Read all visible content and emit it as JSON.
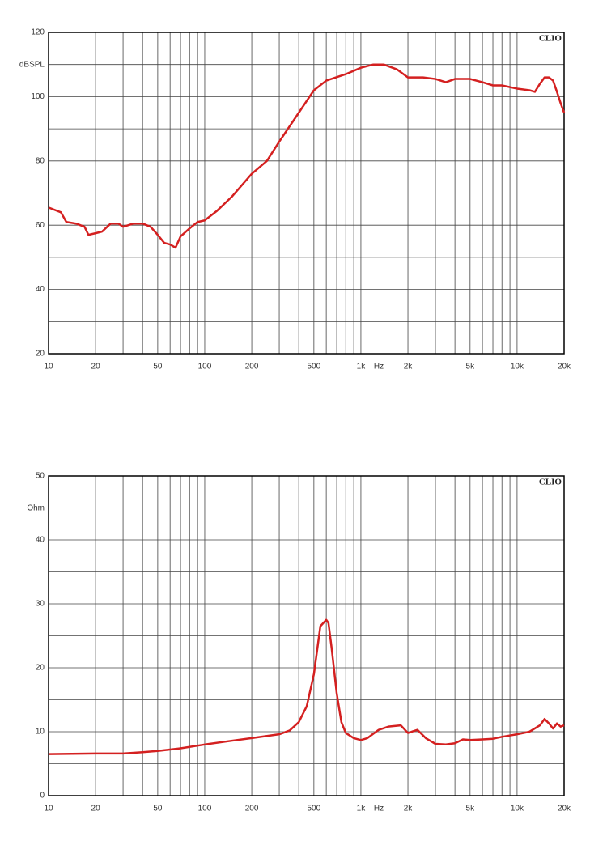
{
  "chart_data": [
    {
      "type": "line",
      "xscale": "log",
      "ylabel": "dBSPL",
      "xlabel": "Hz",
      "watermark": "CLIO",
      "color": "#d42020",
      "x": [
        10,
        12,
        13,
        15,
        17,
        18,
        20,
        22,
        25,
        28,
        30,
        35,
        40,
        45,
        50,
        55,
        60,
        65,
        70,
        80,
        90,
        100,
        120,
        150,
        200,
        250,
        300,
        400,
        500,
        600,
        800,
        1000,
        1200,
        1400,
        1700,
        2000,
        2500,
        3000,
        3500,
        4000,
        5000,
        6000,
        7000,
        8000,
        10000,
        12000,
        13000,
        14000,
        15000,
        16000,
        17000,
        18000,
        19000,
        20000
      ],
      "values": [
        65.5,
        64,
        61,
        60.5,
        59.5,
        57,
        57.5,
        58,
        60.5,
        60.5,
        59.5,
        60.5,
        60.5,
        59.5,
        57,
        54.5,
        54,
        53,
        56.5,
        59,
        61,
        61.5,
        64.5,
        69,
        76,
        80,
        86,
        95,
        102,
        105,
        107,
        109,
        110,
        110,
        108.5,
        106,
        106,
        105.5,
        104.5,
        105.5,
        105.5,
        104.5,
        103.5,
        103.5,
        102.5,
        102,
        101.5,
        104,
        106,
        106,
        105,
        101.5,
        98,
        95
      ],
      "xlim": [
        10,
        20000
      ],
      "ylim": [
        20,
        120
      ],
      "xticks": [
        10,
        20,
        50,
        100,
        200,
        500,
        {
          "value": 1000,
          "label": "1k"
        },
        {
          "value": 2000,
          "label": "2k"
        },
        {
          "value": 5000,
          "label": "5k"
        },
        {
          "value": 10000,
          "label": "10k"
        },
        {
          "value": 20000,
          "label": "20k"
        }
      ],
      "xminor": [
        30,
        40,
        60,
        70,
        80,
        90,
        300,
        400,
        600,
        700,
        800,
        900,
        3000,
        4000,
        6000,
        7000,
        8000,
        9000
      ],
      "yticks": [
        20,
        40,
        60,
        80,
        100,
        120
      ],
      "yminor": [
        30,
        50,
        70,
        90,
        110
      ],
      "grid": true
    },
    {
      "type": "line",
      "xscale": "log",
      "ylabel": "Ohm",
      "xlabel": "Hz",
      "watermark": "CLIO",
      "color": "#d42020",
      "x": [
        10,
        20,
        30,
        40,
        50,
        70,
        100,
        150,
        200,
        300,
        350,
        400,
        450,
        500,
        550,
        600,
        620,
        650,
        700,
        750,
        800,
        900,
        1000,
        1100,
        1300,
        1500,
        1800,
        2000,
        2300,
        2600,
        3000,
        3500,
        4000,
        4500,
        5000,
        6000,
        7000,
        8000,
        10000,
        12000,
        14000,
        15000,
        16000,
        17000,
        18000,
        19000,
        20000
      ],
      "values": [
        6.5,
        6.6,
        6.6,
        6.8,
        7,
        7.4,
        8,
        8.6,
        9,
        9.6,
        10.2,
        11.5,
        14,
        19,
        26.5,
        27.5,
        27,
        23,
        16,
        11.5,
        9.8,
        9,
        8.7,
        9,
        10.3,
        10.8,
        11,
        9.8,
        10.3,
        9,
        8.1,
        8,
        8.2,
        8.8,
        8.7,
        8.8,
        8.9,
        9.2,
        9.6,
        10,
        11,
        12,
        11.3,
        10.5,
        11.3,
        10.8,
        11
      ],
      "xlim": [
        10,
        20000
      ],
      "ylim": [
        0,
        50
      ],
      "xticks": [
        10,
        20,
        50,
        100,
        200,
        500,
        {
          "value": 1000,
          "label": "1k"
        },
        {
          "value": 2000,
          "label": "2k"
        },
        {
          "value": 5000,
          "label": "5k"
        },
        {
          "value": 10000,
          "label": "10k"
        },
        {
          "value": 20000,
          "label": "20k"
        }
      ],
      "xminor": [
        30,
        40,
        60,
        70,
        80,
        90,
        300,
        400,
        600,
        700,
        800,
        900,
        3000,
        4000,
        6000,
        7000,
        8000,
        9000
      ],
      "yticks": [
        0,
        10,
        20,
        30,
        40,
        50
      ],
      "yminor": [
        5,
        15,
        25,
        35,
        45
      ],
      "grid": true
    }
  ]
}
